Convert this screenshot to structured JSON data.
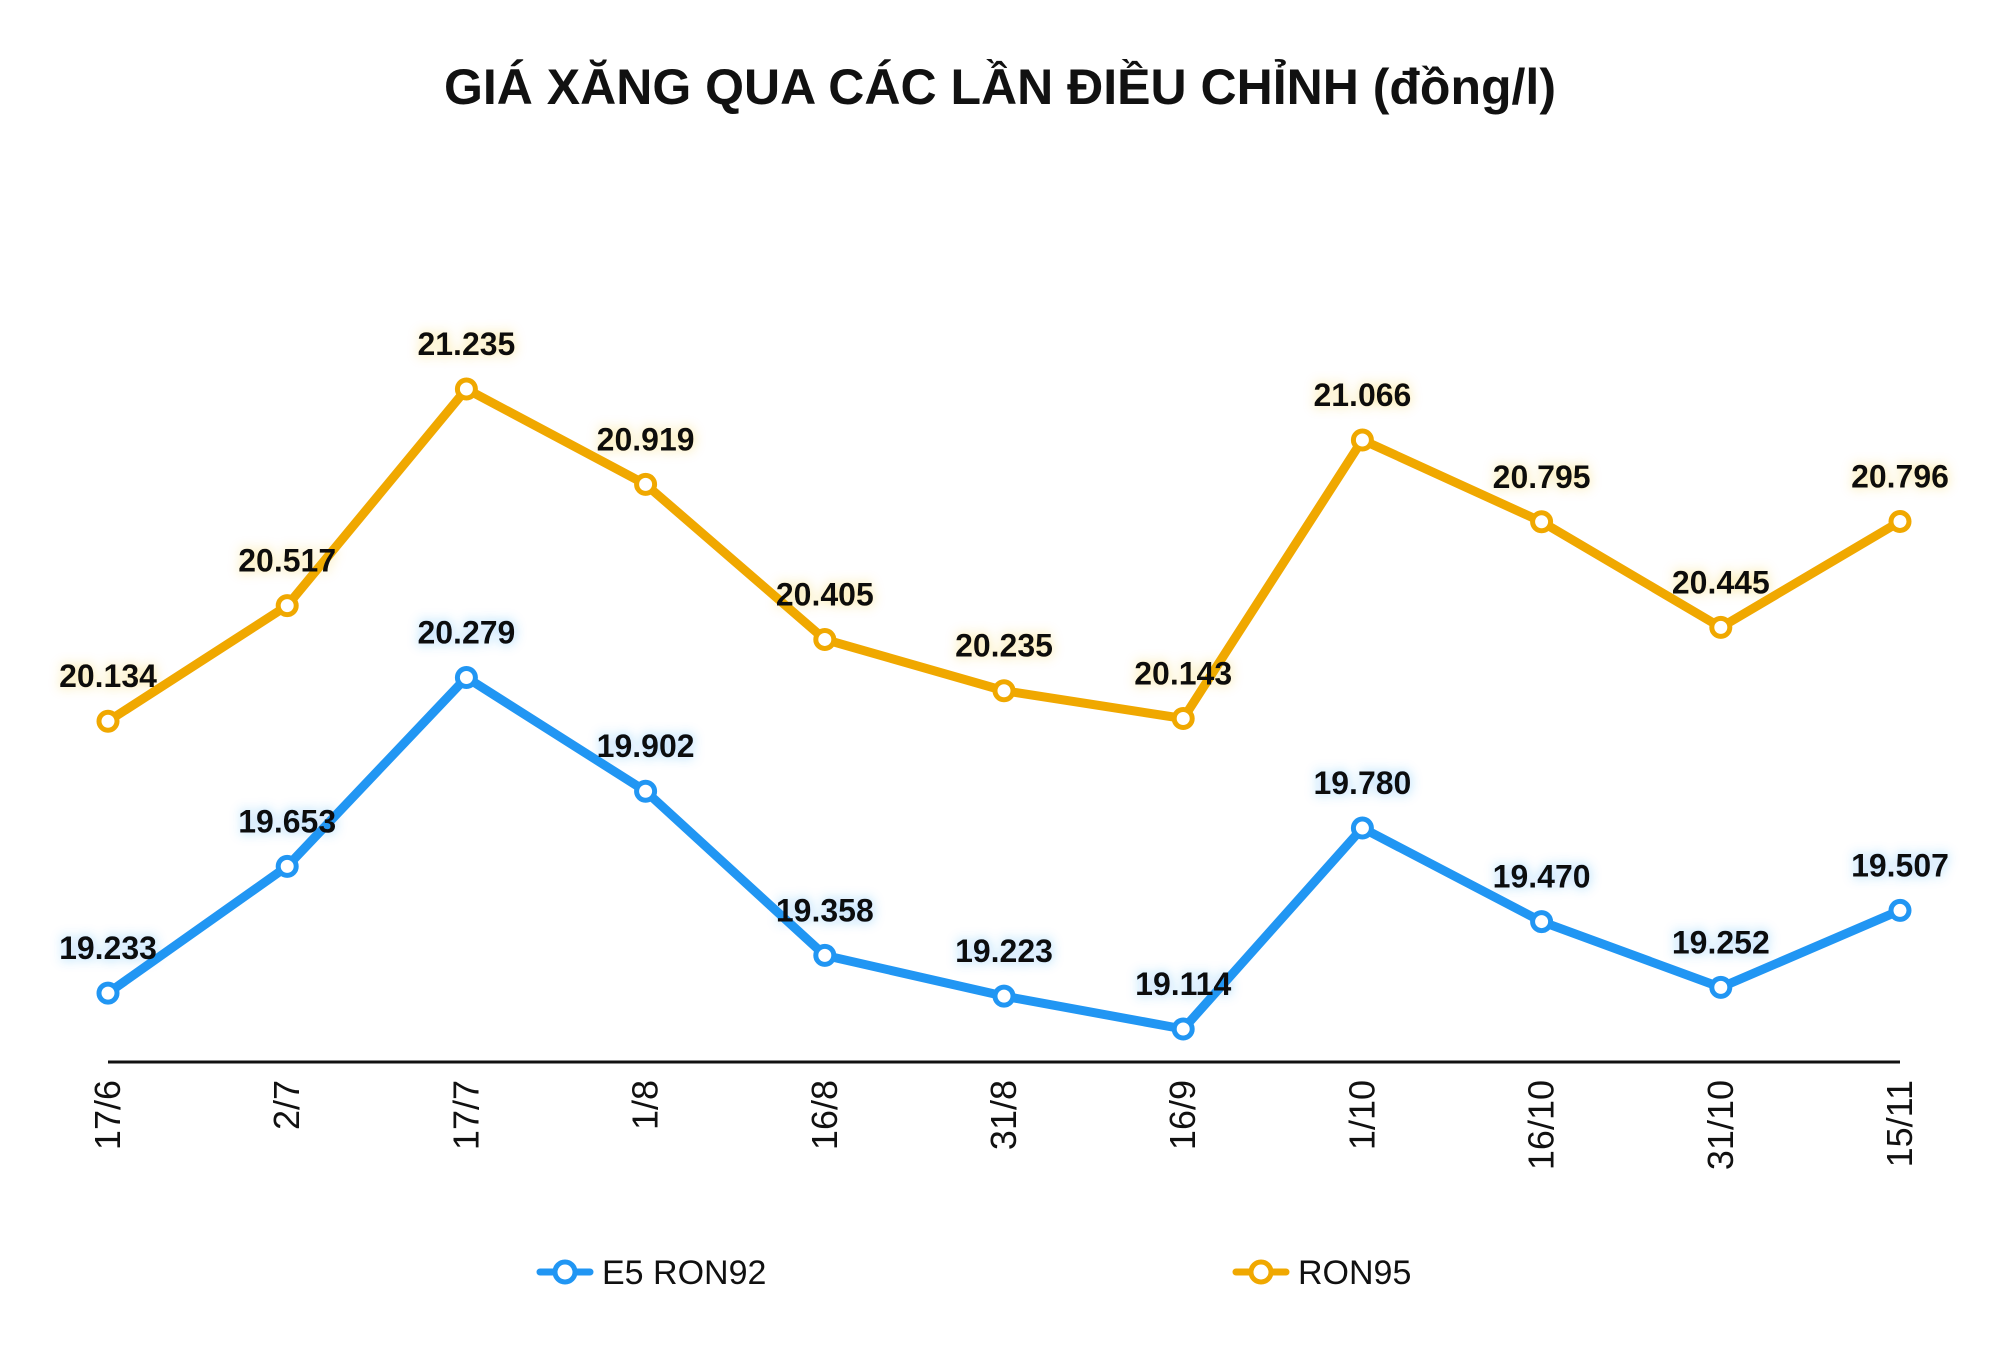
{
  "chart_data": {
    "type": "line",
    "title": "GIÁ XĂNG QUA CÁC LẦN ĐIỀU CHỈNH (đồng/l)",
    "xlabel": "",
    "ylabel": "",
    "categories": [
      "17/6",
      "2/7",
      "17/7",
      "1/8",
      "16/8",
      "31/8",
      "16/9",
      "1/10",
      "16/10",
      "31/10",
      "15/11"
    ],
    "series": [
      {
        "name": "E5 RON92",
        "color": "#2196F3",
        "values": [
          19233,
          19653,
          20279,
          19902,
          19358,
          19223,
          19114,
          19780,
          19470,
          19252,
          19507
        ],
        "labels": [
          "19.233",
          "19.653",
          "20.279",
          "19.902",
          "19.358",
          "19.223",
          "19.114",
          "19.780",
          "19.470",
          "19.252",
          "19.507"
        ]
      },
      {
        "name": "RON95",
        "color": "#F0A800",
        "values": [
          20134,
          20517,
          21235,
          20919,
          20405,
          20235,
          20143,
          21066,
          20795,
          20445,
          20796
        ],
        "labels": [
          "20.134",
          "20.517",
          "21.235",
          "20.919",
          "20.405",
          "20.235",
          "20.143",
          "21.066",
          "20.795",
          "20.445",
          "20.796"
        ]
      }
    ],
    "grid": false,
    "legend_position": "bottom"
  }
}
